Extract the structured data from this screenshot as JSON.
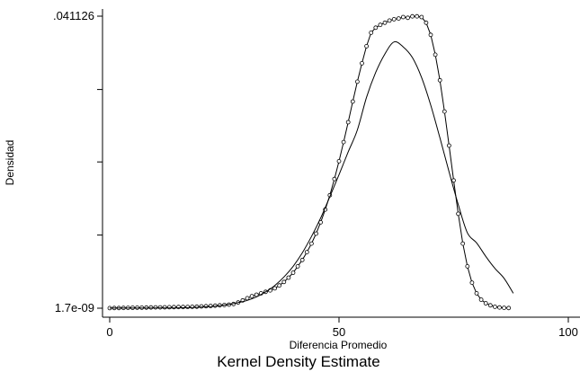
{
  "chart_data": {
    "type": "line",
    "title": "Kernel Density Estimate",
    "xlabel": "Diferencia Promedio",
    "ylabel": "Densidad",
    "xlim": [
      0,
      100
    ],
    "ylim": [
      1.7e-09,
      0.041126
    ],
    "x_ticks": [
      0,
      50,
      100
    ],
    "x_tick_labels": [
      "0",
      "50",
      "100"
    ],
    "y_tick_labels": [
      ".041126",
      "1.7e-09"
    ],
    "y_tick_values": [
      0.041126,
      1.7e-09
    ],
    "y_minor_ticks": [
      0.0103,
      0.0206,
      0.0308
    ],
    "grid": false,
    "legend": "none",
    "series": [
      {
        "style": "line with hollow circle markers",
        "color": "#000000",
        "x": [
          0,
          1,
          2,
          3,
          4,
          5,
          6,
          7,
          8,
          9,
          10,
          11,
          12,
          13,
          14,
          15,
          16,
          17,
          18,
          19,
          20,
          21,
          22,
          23,
          24,
          25,
          26,
          27,
          28,
          29,
          30,
          31,
          32,
          33,
          34,
          35,
          36,
          37,
          38,
          39,
          40,
          41,
          42,
          43,
          44,
          45,
          46,
          47,
          48,
          49,
          50,
          51,
          52,
          53,
          54,
          55,
          56,
          57,
          58,
          59,
          60,
          61,
          62,
          63,
          64,
          65,
          66,
          67,
          68,
          69,
          70,
          71,
          72,
          73,
          74,
          75,
          76,
          77,
          78,
          79,
          80,
          81,
          82,
          83,
          84,
          85,
          86,
          87
        ],
        "y": [
          1e-05,
          2e-05,
          3e-05,
          4e-05,
          5e-05,
          6e-05,
          7e-05,
          8e-05,
          9e-05,
          0.0001,
          0.00011,
          0.00012,
          0.00013,
          0.00014,
          0.00015,
          0.00016,
          0.00017,
          0.00018,
          0.0002,
          0.00022,
          0.00025,
          0.00028,
          0.00032,
          0.00036,
          0.0004,
          0.00045,
          0.0005,
          0.0006,
          0.0008,
          0.0011,
          0.0014,
          0.0017,
          0.0019,
          0.0021,
          0.0023,
          0.0025,
          0.0028,
          0.0032,
          0.0037,
          0.0043,
          0.005,
          0.0059,
          0.0068,
          0.0079,
          0.0091,
          0.0105,
          0.0121,
          0.0139,
          0.0159,
          0.0182,
          0.0207,
          0.0234,
          0.0262,
          0.0291,
          0.0319,
          0.0345,
          0.0369,
          0.0388,
          0.0395,
          0.0399,
          0.0402,
          0.0405,
          0.0407,
          0.0408,
          0.041,
          0.0409,
          0.0411,
          0.0411,
          0.041,
          0.0402,
          0.0385,
          0.0357,
          0.0321,
          0.0277,
          0.0229,
          0.018,
          0.0133,
          0.0091,
          0.0059,
          0.0036,
          0.0021,
          0.0012,
          0.0007,
          0.0004,
          0.0002,
          0.0001,
          5e-05,
          2e-05
        ]
      },
      {
        "style": "line",
        "color": "#000000",
        "x": [
          0,
          2,
          4,
          6,
          8,
          10,
          12,
          14,
          16,
          18,
          20,
          22,
          24,
          26,
          28,
          30,
          32,
          34,
          36,
          38,
          40,
          42,
          44,
          46,
          48,
          50,
          52,
          54,
          56,
          58,
          60,
          62,
          64,
          66,
          68,
          70,
          72,
          74,
          76,
          78,
          80,
          82,
          84,
          86,
          88
        ],
        "y": [
          1e-05,
          1e-05,
          1e-05,
          1e-05,
          1e-05,
          2e-05,
          3e-05,
          4e-05,
          6e-05,
          0.0001,
          0.00015,
          0.00023,
          0.00035,
          0.00053,
          0.00078,
          0.0011,
          0.0016,
          0.0023,
          0.0032,
          0.0044,
          0.0059,
          0.0078,
          0.0101,
          0.0127,
          0.0157,
          0.0188,
          0.022,
          0.0251,
          0.0297,
          0.0332,
          0.0358,
          0.0375,
          0.0368,
          0.0353,
          0.0325,
          0.0286,
          0.024,
          0.0192,
          0.0146,
          0.0106,
          0.0092,
          0.0073,
          0.0056,
          0.0042,
          0.0021
        ]
      }
    ]
  }
}
